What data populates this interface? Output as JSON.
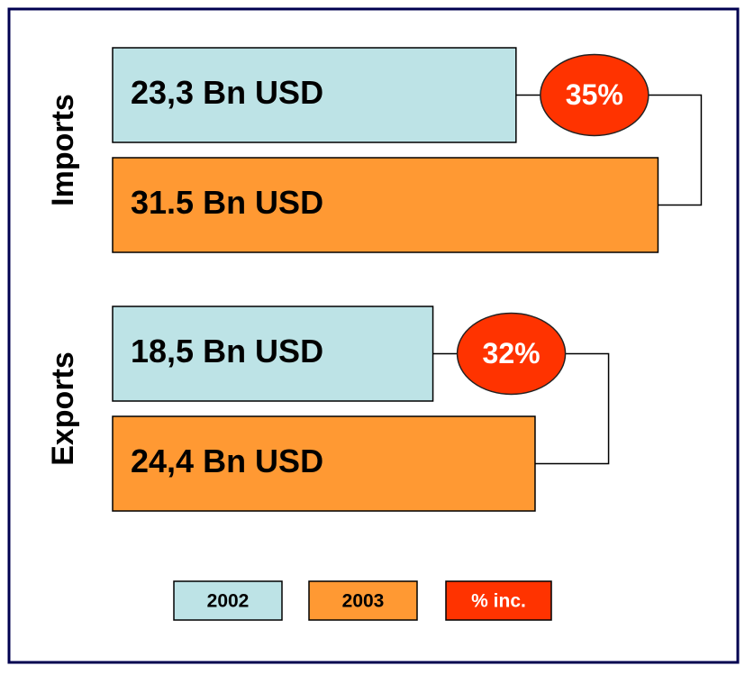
{
  "groups": [
    {
      "name": "Imports",
      "bars": [
        {
          "value": 23.3,
          "label": "23,3 Bn USD"
        },
        {
          "value": 31.5,
          "label": "31.5 Bn USD"
        }
      ],
      "increase": {
        "value": 35,
        "label": "35%"
      }
    },
    {
      "name": "Exports",
      "bars": [
        {
          "value": 18.5,
          "label": "18,5 Bn USD"
        },
        {
          "value": 24.4,
          "label": "24,4 Bn USD"
        }
      ],
      "increase": {
        "value": 32,
        "label": "32%"
      }
    }
  ],
  "legend": [
    "2002",
    "2003",
    "% inc."
  ],
  "colors": [
    "#bde3e6",
    "#ff9933",
    "#ff3300"
  ]
}
